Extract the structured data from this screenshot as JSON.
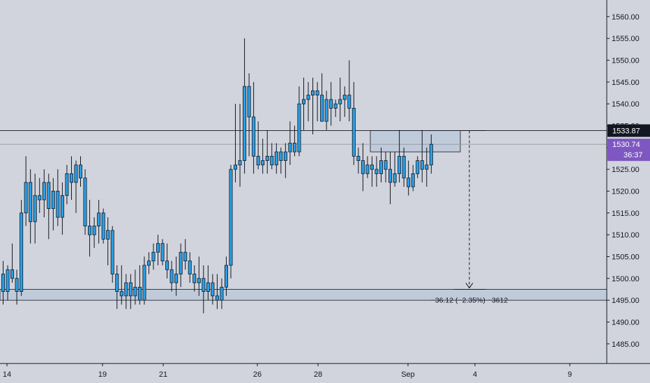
{
  "chart_data": {
    "type": "candlestick",
    "y_range": [
      1480.5,
      1563.8
    ],
    "y_ticks": [
      "1485.00",
      "1490.00",
      "1495.00",
      "1500.00",
      "1505.00",
      "1510.00",
      "1515.00",
      "1520.00",
      "1525.00",
      "1530.00",
      "1535.00",
      "1540.00",
      "1545.00",
      "1550.00",
      "1555.00",
      "1560.00"
    ],
    "x_ticks": [
      "14",
      "19",
      "21",
      "26",
      "28",
      "Sep",
      "4",
      "9"
    ],
    "colors": {
      "up": "#2a9fe6",
      "down": "#2a9fe6",
      "wick": "#131722",
      "outline": "#131722",
      "zone": "#b3c3d9",
      "price_tag": "#131722",
      "last_tag": "#7e57c2"
    },
    "price_lines": {
      "level": "1533.87",
      "last": "1530.74",
      "countdown": "36:37"
    },
    "zones": [
      {
        "name": "support-zone",
        "top": 1497.5,
        "bottom": 1495.0
      },
      {
        "name": "resistance-box",
        "top": 1533.87,
        "bottom": 1529.0
      }
    ],
    "measure_label": "−36.12 (−2.35%) −3612",
    "candles": [
      [
        1501,
        1504,
        1494,
        1497
      ],
      [
        1497,
        1503,
        1495,
        1502
      ],
      [
        1502,
        1508,
        1499,
        1500
      ],
      [
        1500,
        1502,
        1494,
        1497
      ],
      [
        1497,
        1518,
        1496,
        1515
      ],
      [
        1515,
        1528,
        1512,
        1522
      ],
      [
        1522,
        1525,
        1508,
        1513
      ],
      [
        1513,
        1524,
        1508,
        1519
      ],
      [
        1519,
        1523,
        1515,
        1518
      ],
      [
        1518,
        1525,
        1514,
        1522
      ],
      [
        1522,
        1524,
        1509,
        1516
      ],
      [
        1516,
        1523,
        1511,
        1520
      ],
      [
        1520,
        1525,
        1512,
        1514
      ],
      [
        1514,
        1522,
        1510,
        1519
      ],
      [
        1519,
        1526,
        1517,
        1524
      ],
      [
        1524,
        1528,
        1518,
        1522
      ],
      [
        1522,
        1527,
        1515,
        1526
      ],
      [
        1526,
        1528,
        1521,
        1523
      ],
      [
        1523,
        1525,
        1510,
        1512
      ],
      [
        1512,
        1518,
        1505,
        1510
      ],
      [
        1510,
        1514,
        1507,
        1512
      ],
      [
        1512,
        1518,
        1508,
        1515
      ],
      [
        1515,
        1516,
        1508,
        1509
      ],
      [
        1509,
        1514,
        1503,
        1511
      ],
      [
        1511,
        1512,
        1499,
        1501
      ],
      [
        1501,
        1503,
        1493,
        1497
      ],
      [
        1497,
        1503,
        1494,
        1496
      ],
      [
        1496,
        1501,
        1493,
        1499
      ],
      [
        1499,
        1501,
        1493,
        1496
      ],
      [
        1496,
        1502,
        1494,
        1498
      ],
      [
        1498,
        1503,
        1494,
        1495
      ],
      [
        1495,
        1505,
        1494,
        1503
      ],
      [
        1503,
        1506,
        1501,
        1504
      ],
      [
        1504,
        1508,
        1502,
        1506
      ],
      [
        1506,
        1510,
        1503,
        1508
      ],
      [
        1508,
        1509,
        1503,
        1504
      ],
      [
        1504,
        1508,
        1500,
        1502
      ],
      [
        1502,
        1504,
        1497,
        1499
      ],
      [
        1499,
        1505,
        1496,
        1501
      ],
      [
        1501,
        1508,
        1498,
        1506
      ],
      [
        1506,
        1509,
        1502,
        1504
      ],
      [
        1504,
        1506,
        1499,
        1501
      ],
      [
        1501,
        1503,
        1497,
        1499
      ],
      [
        1499,
        1505,
        1496,
        1500
      ],
      [
        1500,
        1503,
        1492,
        1497
      ],
      [
        1497,
        1503,
        1495,
        1499
      ],
      [
        1499,
        1501,
        1494,
        1496
      ],
      [
        1496,
        1501,
        1493,
        1495
      ],
      [
        1495,
        1500,
        1493,
        1498
      ],
      [
        1498,
        1505,
        1496,
        1503
      ],
      [
        1503,
        1526,
        1500,
        1525
      ],
      [
        1525,
        1540,
        1522,
        1526
      ],
      [
        1526,
        1540,
        1521,
        1527
      ],
      [
        1527,
        1555,
        1524,
        1544
      ],
      [
        1544,
        1547,
        1528,
        1537
      ],
      [
        1537,
        1545,
        1524,
        1528
      ],
      [
        1528,
        1536,
        1525,
        1526
      ],
      [
        1526,
        1532,
        1524,
        1527
      ],
      [
        1527,
        1534,
        1524,
        1528
      ],
      [
        1528,
        1531,
        1525,
        1526
      ],
      [
        1526,
        1531,
        1524,
        1529
      ],
      [
        1529,
        1530,
        1524,
        1527
      ],
      [
        1527,
        1531,
        1523,
        1529
      ],
      [
        1529,
        1536,
        1526,
        1531
      ],
      [
        1531,
        1535,
        1528,
        1529
      ],
      [
        1529,
        1544,
        1528,
        1540
      ],
      [
        1540,
        1546,
        1534,
        1541
      ],
      [
        1541,
        1545,
        1536,
        1542
      ],
      [
        1542,
        1546,
        1533,
        1543
      ],
      [
        1543,
        1545,
        1536,
        1542
      ],
      [
        1542,
        1547,
        1536,
        1536
      ],
      [
        1536,
        1543,
        1534,
        1541
      ],
      [
        1541,
        1545,
        1535,
        1539
      ],
      [
        1539,
        1541,
        1537,
        1540
      ],
      [
        1540,
        1546,
        1536,
        1541
      ],
      [
        1541,
        1544,
        1537,
        1542
      ],
      [
        1542,
        1550,
        1536,
        1539
      ],
      [
        1539,
        1545,
        1526,
        1528
      ],
      [
        1528,
        1530,
        1524,
        1527
      ],
      [
        1527,
        1531,
        1520,
        1524
      ],
      [
        1524,
        1528,
        1523,
        1526
      ],
      [
        1526,
        1528,
        1521,
        1525
      ],
      [
        1525,
        1528,
        1521,
        1524
      ],
      [
        1524,
        1530,
        1522,
        1527
      ],
      [
        1527,
        1529,
        1522,
        1525
      ],
      [
        1525,
        1529,
        1517,
        1522
      ],
      [
        1522,
        1529,
        1521,
        1524
      ],
      [
        1524,
        1534,
        1522,
        1528
      ],
      [
        1528,
        1530,
        1521,
        1523
      ],
      [
        1523,
        1527,
        1519,
        1521
      ],
      [
        1521,
        1526,
        1520,
        1524
      ],
      [
        1524,
        1528,
        1523,
        1527
      ],
      [
        1527,
        1534,
        1522,
        1525
      ],
      [
        1525,
        1530,
        1521,
        1526
      ],
      [
        1526,
        1533,
        1524,
        1530.74
      ]
    ]
  }
}
